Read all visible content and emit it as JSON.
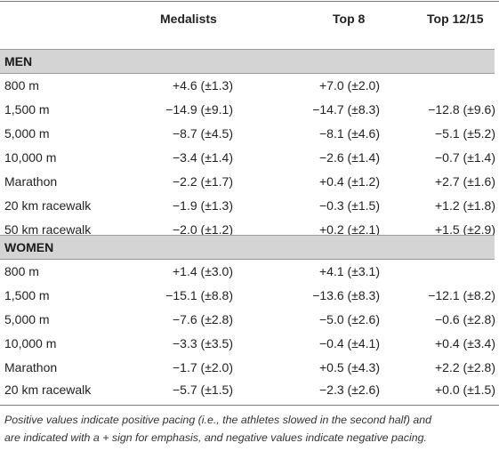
{
  "columns": {
    "medalists": "Medalists",
    "top8": "Top 8",
    "top1215": "Top 12/15"
  },
  "sections": {
    "men": {
      "title": "MEN",
      "rows": [
        {
          "event": "800 m",
          "medalists": "+4.6 (±1.3)",
          "top8": "+7.0 (±2.0)",
          "top1215": ""
        },
        {
          "event": "1,500 m",
          "medalists": "−14.9 (±9.1)",
          "top8": "−14.7 (±8.3)",
          "top1215": "−12.8 (±9.6)"
        },
        {
          "event": "5,000 m",
          "medalists": "−8.7 (±4.5)",
          "top8": "−8.1 (±4.6)",
          "top1215": "−5.1 (±5.2)"
        },
        {
          "event": "10,000 m",
          "medalists": "−3.4 (±1.4)",
          "top8": "−2.6 (±1.4)",
          "top1215": "−0.7 (±1.4)"
        },
        {
          "event": "Marathon",
          "medalists": "−2.2 (±1.7)",
          "top8": "+0.4 (±1.2)",
          "top1215": "+2.7 (±1.6)"
        },
        {
          "event": "20 km racewalk",
          "medalists": "−1.9 (±1.3)",
          "top8": "−0.3 (±1.5)",
          "top1215": "+1.2 (±1.8)"
        },
        {
          "event": "50 km racewalk",
          "medalists": "−2.0 (±1.2)",
          "top8": "+0.2 (±2.1)",
          "top1215": "+1.5 (±2.9)"
        }
      ]
    },
    "women": {
      "title": "WOMEN",
      "rows": [
        {
          "event": "800 m",
          "medalists": "+1.4 (±3.0)",
          "top8": "+4.1 (±3.1)",
          "top1215": ""
        },
        {
          "event": "1,500 m",
          "medalists": "−15.1 (±8.8)",
          "top8": "−13.6 (±8.3)",
          "top1215": "−12.1 (±8.2)"
        },
        {
          "event": "5,000 m",
          "medalists": "−7.6 (±2.8)",
          "top8": "−5.0 (±2.6)",
          "top1215": "−0.6 (±2.8)"
        },
        {
          "event": "10,000 m",
          "medalists": "−3.3 (±3.5)",
          "top8": "−0.4 (±4.1)",
          "top1215": "+0.4 (±3.4)"
        },
        {
          "event": "Marathon",
          "medalists": "−1.7 (±2.0)",
          "top8": "+0.5 (±4.3)",
          "top1215": "+2.2 (±2.8)"
        },
        {
          "event": "20 km racewalk",
          "medalists": "−5.7 (±1.5)",
          "top8": "−2.3 (±2.6)",
          "top1215": "+0.0 (±1.5)"
        }
      ]
    }
  },
  "footnote": {
    "line1": "Positive values indicate positive pacing (i.e., the athletes slowed in the second half) and",
    "line2": "are indicated with a + sign for emphasis, and negative values indicate negative pacing."
  }
}
